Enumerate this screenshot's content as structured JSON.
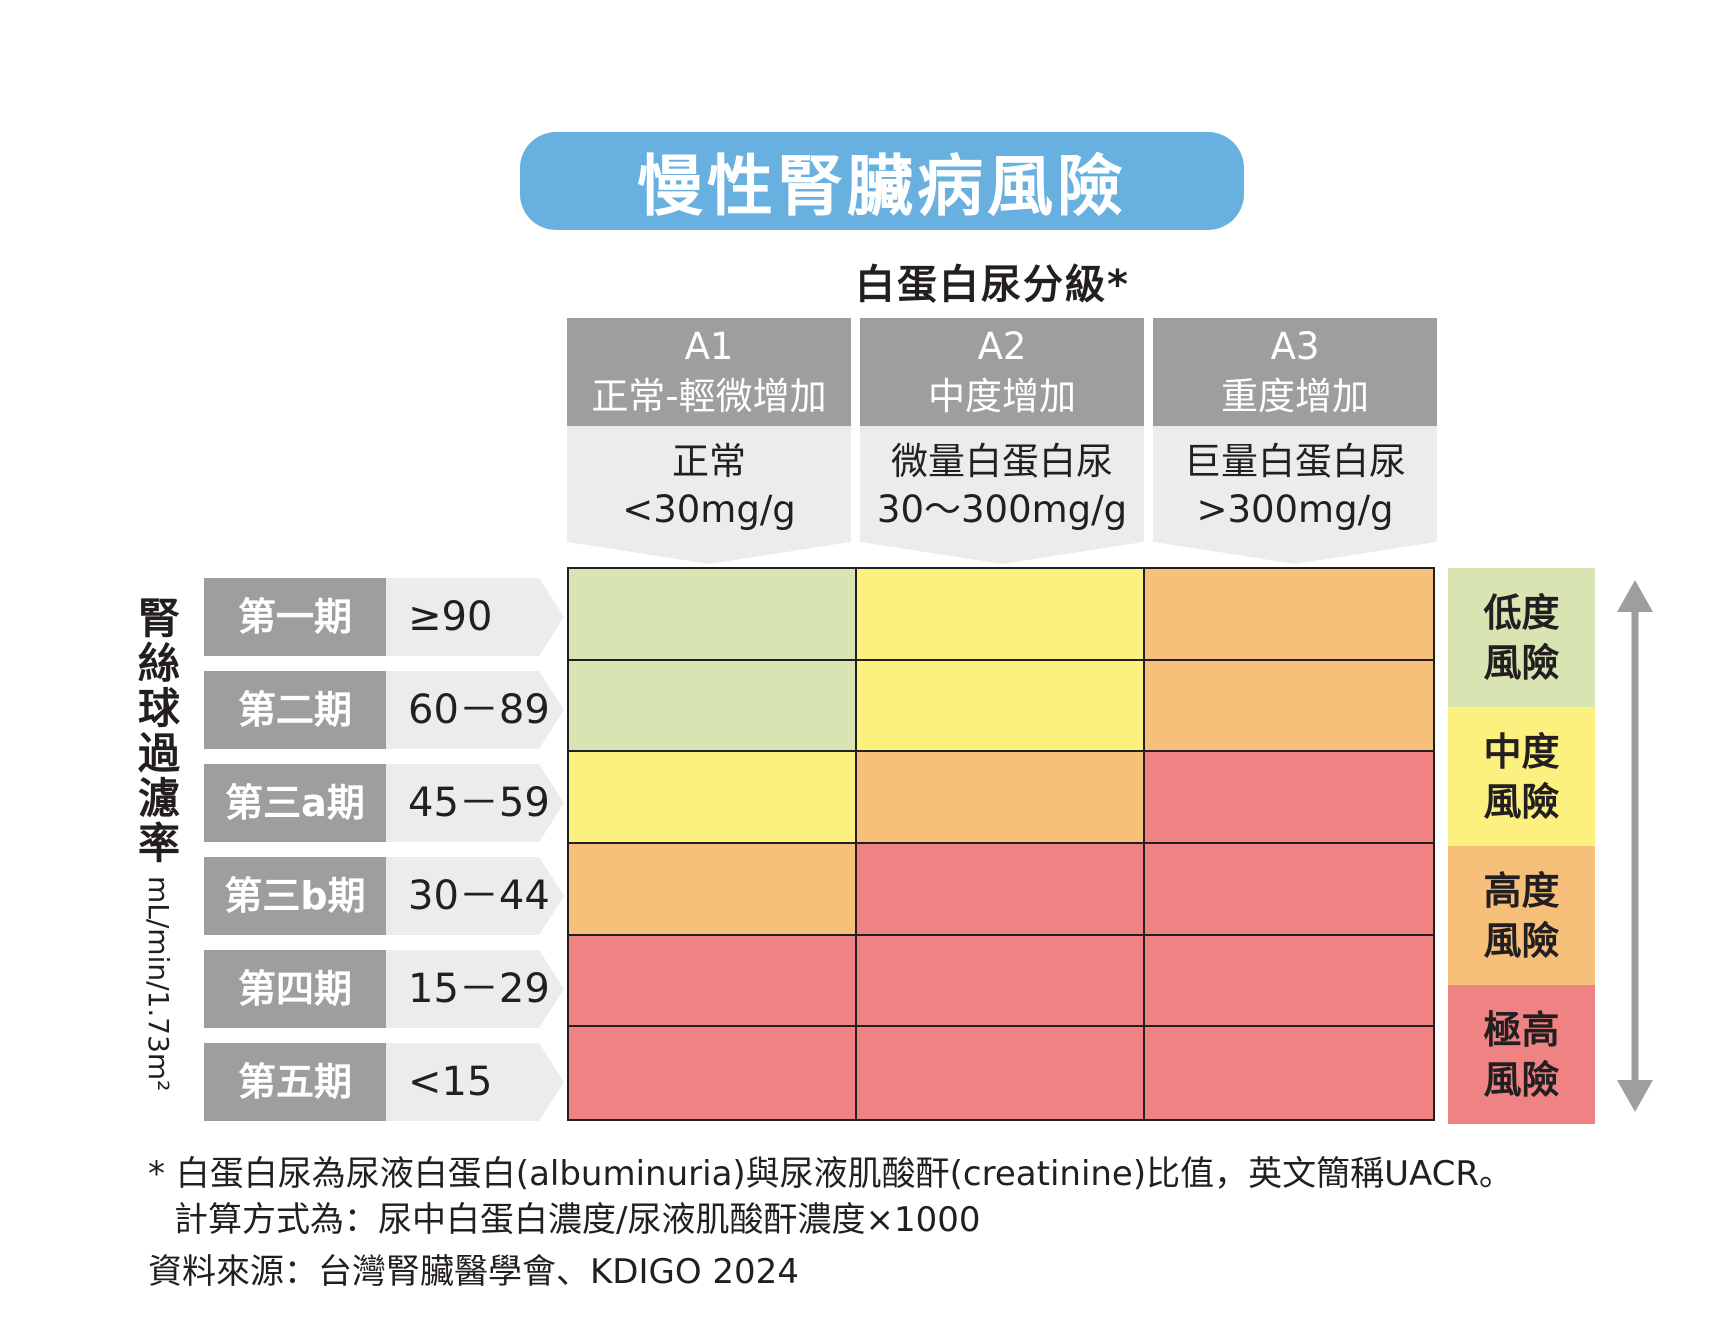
{
  "title": "慢性腎臟病風險",
  "grade_heading": "白蛋白尿分級*",
  "columns": [
    {
      "code": "A1",
      "name": "正常-輕微增加",
      "desc": "正常",
      "value": "<30mg/g"
    },
    {
      "code": "A2",
      "name": "中度增加",
      "desc": "微量白蛋白尿",
      "value": "30～300mg/g"
    },
    {
      "code": "A3",
      "name": "重度增加",
      "desc": "巨量白蛋白尿",
      "value": ">300mg/g"
    }
  ],
  "left_axis": {
    "label": "腎絲球過濾率",
    "unit": "mL/min/1.73m²"
  },
  "stages": [
    {
      "name": "第一期",
      "range": "≥90"
    },
    {
      "name": "第二期",
      "range": "60－89"
    },
    {
      "name": "第三a期",
      "range": "45－59"
    },
    {
      "name": "第三b期",
      "range": "30－44"
    },
    {
      "name": "第四期",
      "range": "15－29"
    },
    {
      "name": "第五期",
      "range": "<15"
    }
  ],
  "risk_levels": [
    {
      "label1": "低度",
      "label2": "風險",
      "color": "#d9e4b3"
    },
    {
      "label1": "中度",
      "label2": "風險",
      "color": "#fcf07e"
    },
    {
      "label1": "高度",
      "label2": "風險",
      "color": "#f7c07a"
    },
    {
      "label1": "極高",
      "label2": "風險",
      "color": "#ef8383"
    }
  ],
  "risk_grid": [
    [
      0,
      1,
      2
    ],
    [
      0,
      1,
      2
    ],
    [
      1,
      2,
      3
    ],
    [
      2,
      3,
      3
    ],
    [
      3,
      3,
      3
    ],
    [
      3,
      3,
      3
    ]
  ],
  "footnotes": {
    "note1": "* 白蛋白尿為尿液白蛋白(albuminuria)與尿液肌酸酐(creatinine)比值，英文簡稱UACR。",
    "note2": "計算方式為：尿中白蛋白濃度/尿液肌酸酐濃度×1000",
    "source": "資料來源：台灣腎臟醫學會、KDIGO 2024"
  },
  "colors": {
    "title_bg": "#68b0e0",
    "header_dark": "#9e9e9d",
    "header_light": "#ececeb",
    "arrow": "#9e9e9d"
  }
}
